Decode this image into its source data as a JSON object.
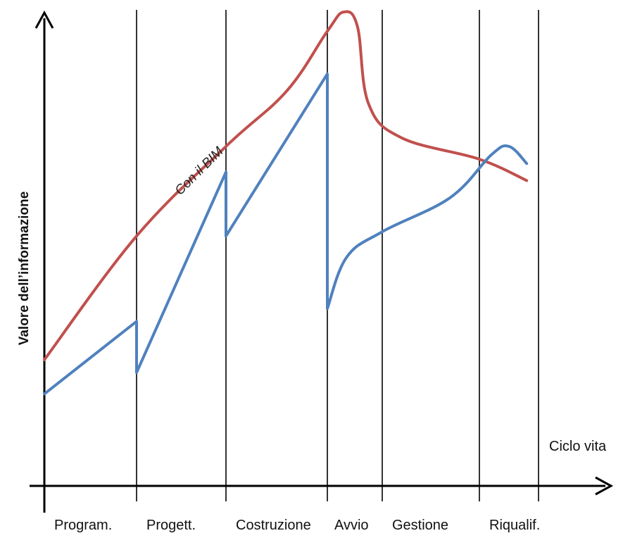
{
  "chart_data": {
    "type": "line",
    "title": "",
    "ylabel": "Valore dell’informazione",
    "xlabel": "Ciclo vita",
    "categories": [
      "Program.",
      "Progett.",
      "Costruzione",
      "Avvio",
      "Gestione",
      "Riqualif."
    ],
    "grid": "vertical phase dividers",
    "series": [
      {
        "name": "Con il BIM",
        "color": "#c0504d",
        "points": [
          [
            0,
            0.18
          ],
          [
            1,
            0.47
          ],
          [
            2,
            0.68
          ],
          [
            2.6,
            0.81
          ],
          [
            3.0,
            0.95
          ],
          [
            3.3,
            0.995
          ],
          [
            3.55,
            0.96
          ],
          [
            3.75,
            0.78
          ],
          [
            4.2,
            0.7
          ],
          [
            5.0,
            0.65
          ],
          [
            5.8,
            0.6
          ]
        ]
      },
      {
        "name": "",
        "color": "#4f81bd",
        "points": [
          [
            0,
            0.1
          ],
          [
            1,
            0.27
          ],
          [
            1,
            0.15
          ],
          [
            2,
            0.62
          ],
          [
            2,
            0.47
          ],
          [
            3,
            0.85
          ],
          [
            3,
            0.3
          ],
          [
            3.35,
            0.42
          ],
          [
            4.0,
            0.48
          ],
          [
            4.7,
            0.56
          ],
          [
            5.2,
            0.66
          ],
          [
            5.5,
            0.68
          ],
          [
            5.8,
            0.64
          ]
        ]
      }
    ],
    "annotations": [
      {
        "text": "Con il BIM",
        "series": "Con il BIM"
      }
    ]
  }
}
